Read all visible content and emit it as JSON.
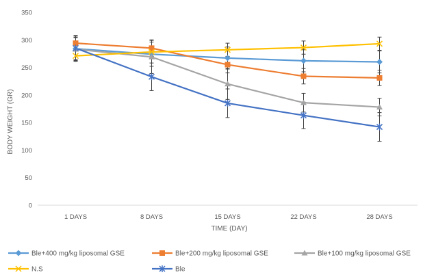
{
  "chart_data": {
    "type": "line",
    "title": "",
    "xlabel": "TIME (DAY)",
    "ylabel": "BODY WEIGHT (GR)",
    "categories": [
      "1 DAYS",
      "8 DAYS",
      "15 DAYS",
      "22 DAYS",
      "28 DAYS"
    ],
    "ylim": [
      0,
      350
    ],
    "yticks": [
      0,
      50,
      100,
      150,
      200,
      250,
      300,
      350
    ],
    "grid": false,
    "legend_position": "bottom",
    "series": [
      {
        "name": "Ble+400 mg/kg liposomal GSE",
        "color": "#5b9bd5",
        "marker": "diamond",
        "values": [
          284,
          274,
          267,
          262,
          260
        ],
        "errors": [
          20,
          22,
          20,
          20,
          20
        ]
      },
      {
        "name": "Ble+200 mg/kg liposomal GSE",
        "color": "#ed7d31",
        "marker": "square",
        "values": [
          294,
          285,
          255,
          234,
          231
        ],
        "errors": [
          14,
          15,
          15,
          14,
          14
        ]
      },
      {
        "name": "Ble+100 mg/kg liposomal GSE",
        "color": "#a5a5a5",
        "marker": "triangle",
        "values": [
          283,
          269,
          220,
          186,
          178
        ],
        "errors": [
          22,
          30,
          28,
          17,
          16
        ]
      },
      {
        "name": "N.S",
        "color": "#ffc000",
        "marker": "x",
        "values": [
          271,
          278,
          282,
          286,
          293
        ],
        "errors": [
          9,
          10,
          12,
          12,
          12
        ]
      },
      {
        "name": "Ble",
        "color": "#4472c4",
        "marker": "star",
        "values": [
          285,
          233,
          185,
          163,
          142
        ],
        "errors": [
          22,
          25,
          26,
          24,
          26
        ]
      }
    ]
  }
}
